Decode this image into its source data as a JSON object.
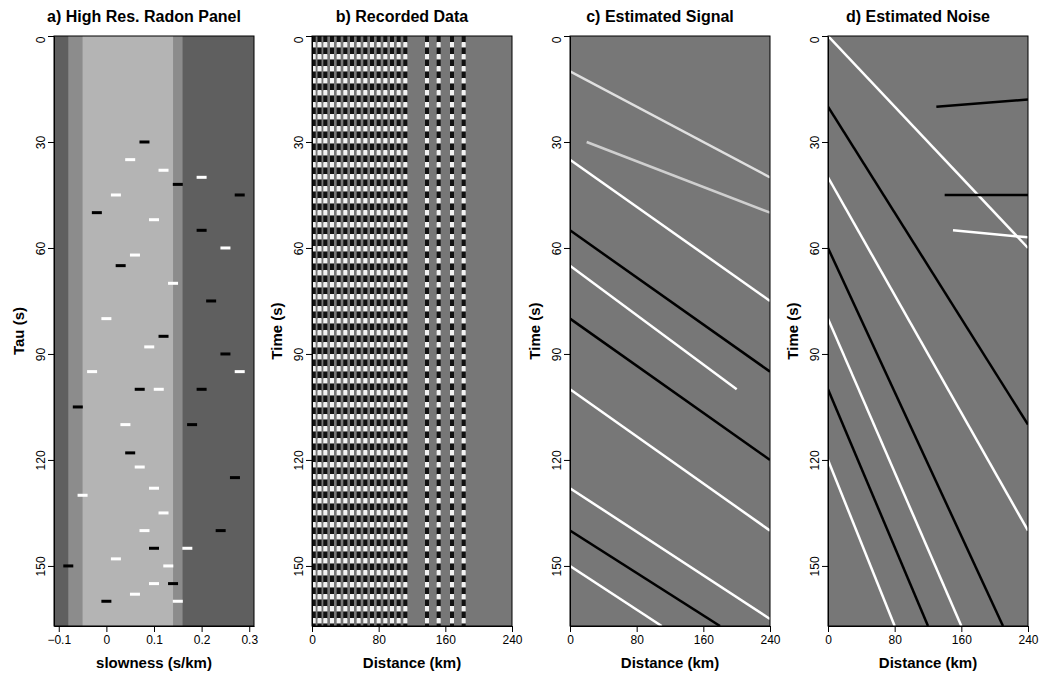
{
  "chart_data": [
    {
      "type": "scatter",
      "title": "a) High Res. Radon Panel",
      "x_label": "slowness (s/km)",
      "y_label": "Tau (s)",
      "xlim": [
        -0.11,
        0.31
      ],
      "ylim": [
        0,
        167
      ],
      "xticks": [
        {
          "value": -0.1,
          "label": "−0.1"
        },
        0,
        0.1,
        0.2,
        0.3
      ],
      "yticks": [
        0,
        30,
        60,
        90,
        120,
        150
      ],
      "marker": "dash",
      "bands": [
        {
          "x": [
            -0.08,
            0.16
          ],
          "color": "#8c8c8c"
        },
        {
          "x": [
            -0.05,
            0.14
          ],
          "color": "#b4b4b4"
        }
      ],
      "series": [
        {
          "color": "#ffffff",
          "x": [
            0.05,
            0.12,
            0.02,
            0.1,
            0.2,
            0.06,
            0.14,
            0.0,
            0.09,
            -0.03,
            0.11,
            0.04,
            0.07,
            0.1,
            0.12,
            0.08,
            0.13,
            0.1,
            0.15,
            0.02,
            0.25,
            0.28,
            -0.05,
            0.06,
            0.17
          ],
          "values": [
            35,
            38,
            45,
            52,
            40,
            62,
            70,
            80,
            88,
            95,
            100,
            110,
            122,
            128,
            135,
            140,
            150,
            155,
            160,
            148,
            60,
            95,
            130,
            158,
            145
          ]
        },
        {
          "color": "#000000",
          "x": [
            0.08,
            0.15,
            -0.02,
            0.2,
            0.03,
            0.22,
            0.12,
            0.25,
            -0.06,
            0.18,
            0.05,
            0.27,
            0.1,
            0.0,
            0.14,
            0.28,
            0.24,
            0.07,
            -0.08,
            0.2
          ],
          "values": [
            30,
            42,
            50,
            55,
            65,
            75,
            85,
            90,
            105,
            110,
            118,
            125,
            145,
            160,
            155,
            45,
            140,
            100,
            150,
            100
          ]
        }
      ]
    },
    {
      "type": "traces",
      "title": "b) Recorded Data",
      "x_label": "Distance (km)",
      "y_label": "Time (s)",
      "xlim": [
        0,
        240
      ],
      "ylim": [
        0,
        167
      ],
      "xticks": [
        0,
        80,
        160,
        240
      ],
      "yticks": [
        0,
        30,
        60,
        90,
        120,
        150
      ],
      "color": "#f2f2f2",
      "x": [
        2,
        9,
        16,
        24,
        32,
        40,
        48,
        56,
        64,
        72,
        80,
        88,
        96,
        104,
        112,
        138,
        152,
        168,
        182
      ]
    },
    {
      "type": "line",
      "title": "c) Estimated Signal",
      "x_label": "Distance (km)",
      "y_label": "Time (s)",
      "xlim": [
        0,
        240
      ],
      "ylim": [
        0,
        167
      ],
      "xticks": [
        0,
        80,
        160,
        240
      ],
      "yticks": [
        0,
        30,
        60,
        90,
        120,
        150
      ],
      "series": [
        {
          "color": "#e0e0e0",
          "x": [
            0,
            240
          ],
          "values": [
            10,
            40
          ]
        },
        {
          "color": "#cfcfcf",
          "x": [
            20,
            240
          ],
          "values": [
            30,
            50
          ]
        },
        {
          "color": "#ffffff",
          "x": [
            0,
            240
          ],
          "values": [
            35,
            75
          ]
        },
        {
          "color": "#000000",
          "x": [
            0,
            240
          ],
          "values": [
            55,
            95
          ]
        },
        {
          "color": "#ffffff",
          "x": [
            0,
            200
          ],
          "values": [
            65,
            100
          ]
        },
        {
          "color": "#000000",
          "x": [
            0,
            240
          ],
          "values": [
            80,
            120
          ]
        },
        {
          "color": "#ffffff",
          "x": [
            0,
            240
          ],
          "values": [
            100,
            140
          ]
        },
        {
          "color": "#ffffff",
          "x": [
            0,
            240
          ],
          "values": [
            128,
            165
          ]
        },
        {
          "color": "#000000",
          "x": [
            0,
            180
          ],
          "values": [
            140,
            167
          ]
        },
        {
          "color": "#ffffff",
          "x": [
            0,
            110
          ],
          "values": [
            150,
            167
          ]
        }
      ]
    },
    {
      "type": "line",
      "title": "d) Estimated Noise",
      "x_label": "Distance (km)",
      "y_label": "Time (s)",
      "xlim": [
        0,
        240
      ],
      "ylim": [
        0,
        167
      ],
      "xticks": [
        0,
        80,
        160,
        240
      ],
      "yticks": [
        0,
        30,
        60,
        90,
        120,
        150
      ],
      "series": [
        {
          "color": "#ffffff",
          "x": [
            0,
            240
          ],
          "values": [
            0,
            60
          ]
        },
        {
          "color": "#000000",
          "x": [
            0,
            240
          ],
          "values": [
            20,
            110
          ]
        },
        {
          "color": "#ffffff",
          "x": [
            0,
            240
          ],
          "values": [
            40,
            140
          ]
        },
        {
          "color": "#000000",
          "x": [
            0,
            210
          ],
          "values": [
            60,
            167
          ]
        },
        {
          "color": "#ffffff",
          "x": [
            0,
            160
          ],
          "values": [
            80,
            167
          ]
        },
        {
          "color": "#000000",
          "x": [
            0,
            120
          ],
          "values": [
            100,
            167
          ]
        },
        {
          "color": "#ffffff",
          "x": [
            0,
            80
          ],
          "values": [
            120,
            167
          ]
        },
        {
          "color": "#000000",
          "x": [
            130,
            240
          ],
          "values": [
            20,
            18
          ]
        },
        {
          "color": "#000000",
          "x": [
            140,
            240
          ],
          "values": [
            45,
            45
          ]
        },
        {
          "color": "#ffffff",
          "x": [
            150,
            240
          ],
          "values": [
            55,
            57
          ]
        }
      ]
    }
  ]
}
